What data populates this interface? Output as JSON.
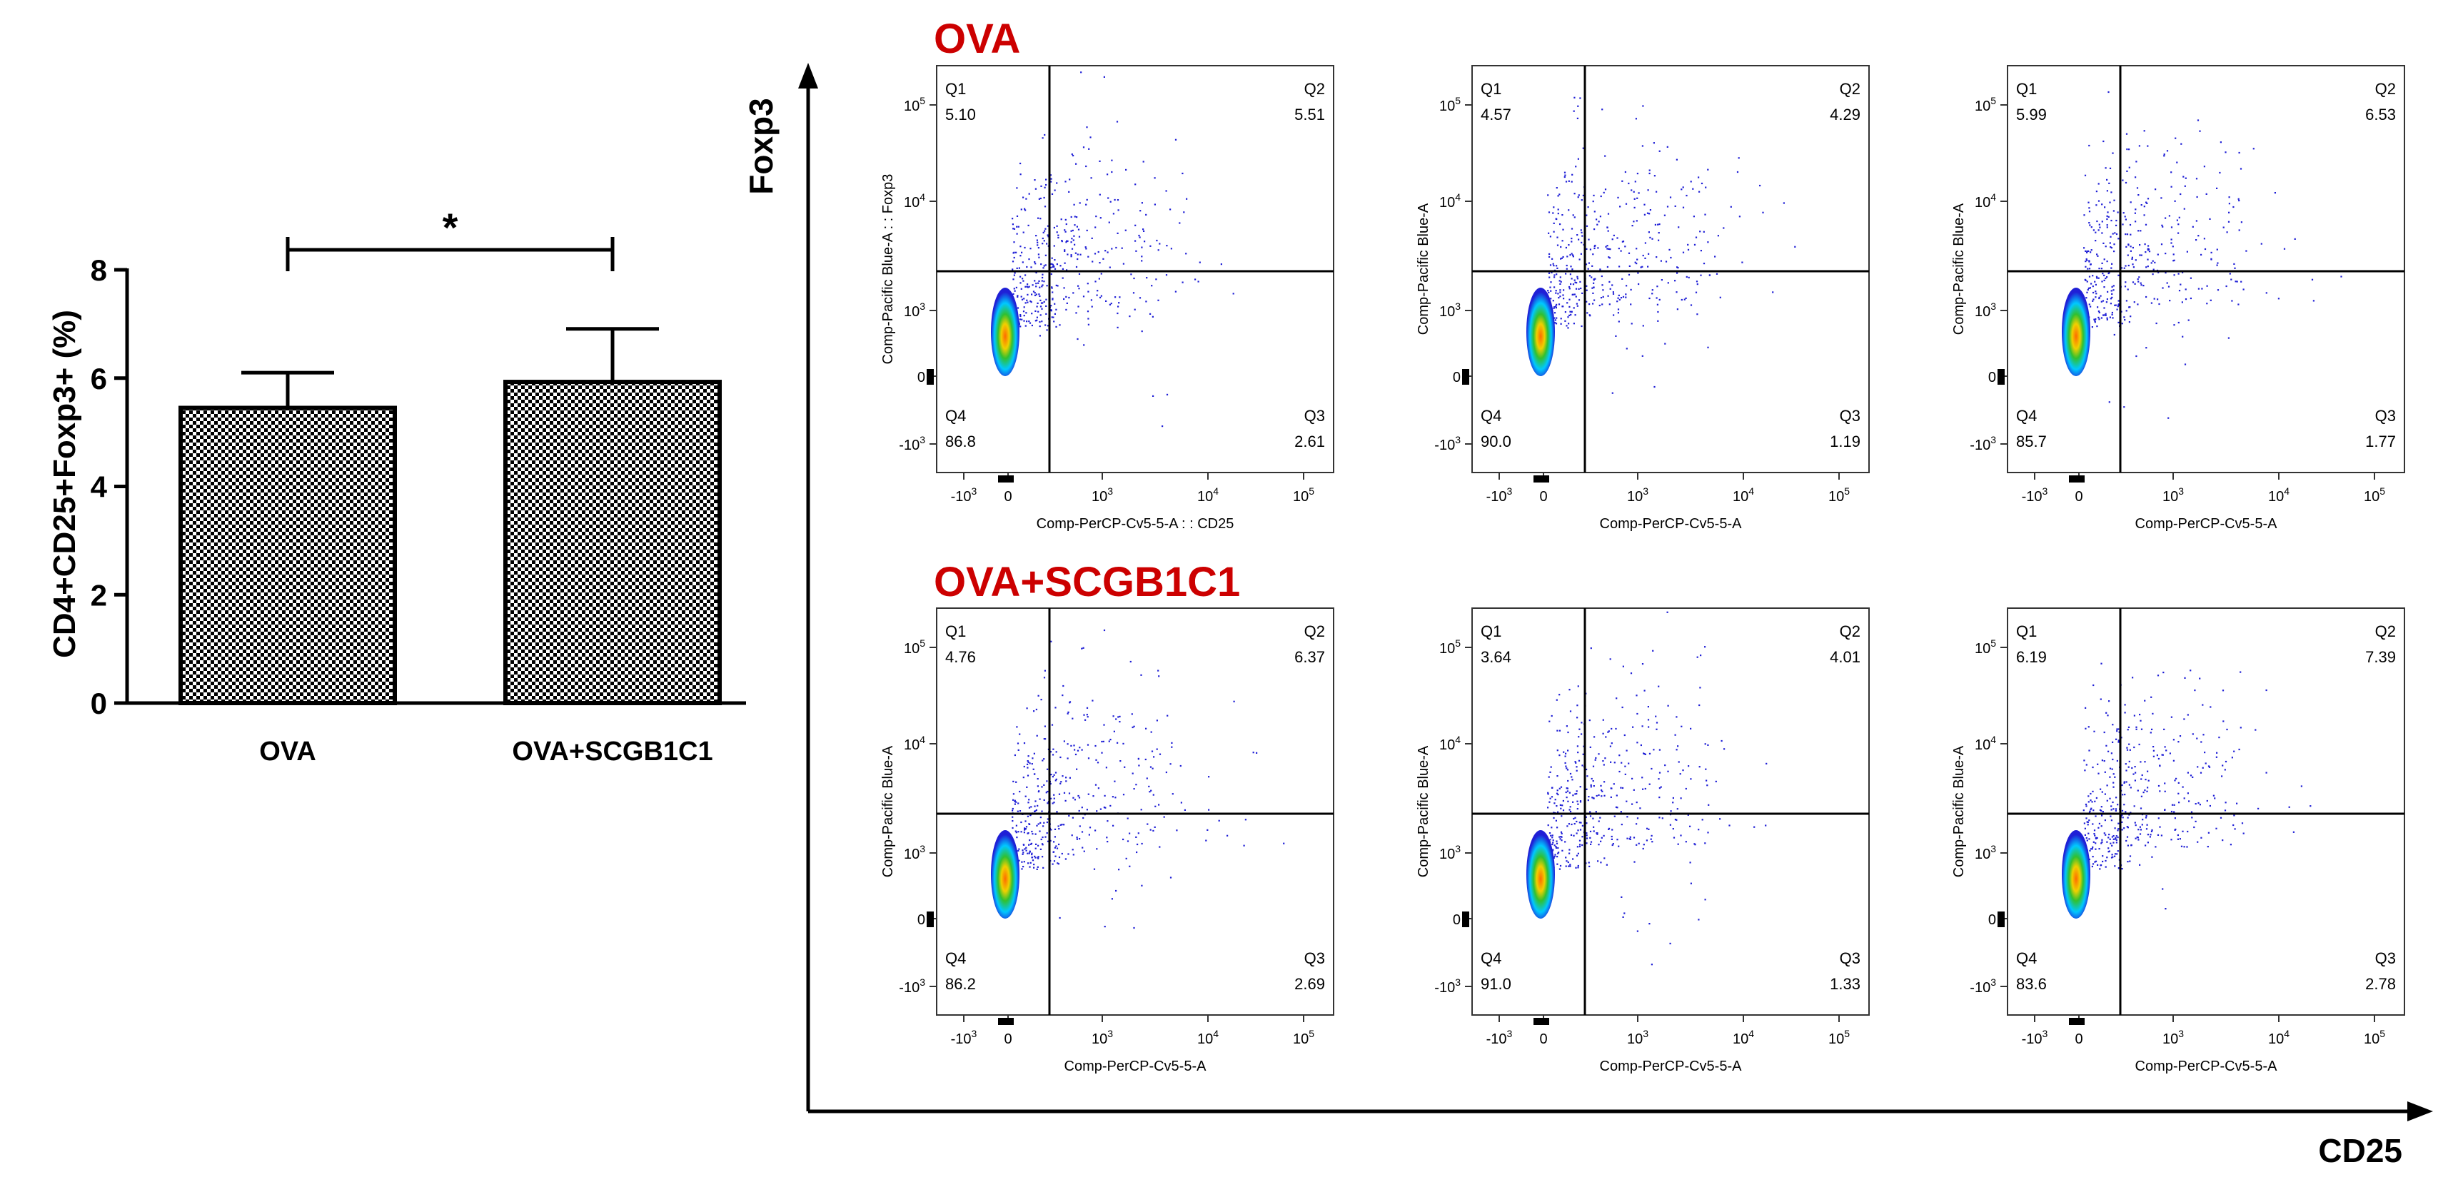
{
  "colors": {
    "axis": "#000000",
    "group_label": "#cc0000",
    "bar_fill_pattern": "checkerboard black/white",
    "density_low": "#1f1fd6",
    "density_mid": "#00c8ff",
    "density_high": "#30c030",
    "density_peak": "#ff6a00"
  },
  "chart_data": [
    {
      "type": "bar",
      "categories": [
        "OVA",
        "OVA+SCGB1C1"
      ],
      "values": [
        5.45,
        5.93
      ],
      "error_bars": [
        0.65,
        0.98
      ],
      "ylabel": "CD4+CD25+Foxp3+ (%)",
      "ylim": [
        0,
        8
      ],
      "yticks": [
        "0",
        "2",
        "4",
        "6",
        "8"
      ],
      "significance": {
        "label": "*",
        "between": [
          "OVA",
          "OVA+SCGB1C1"
        ]
      },
      "grid": false
    },
    {
      "type": "scatter",
      "description_axes": {
        "y": "Foxp3",
        "x": "CD25"
      },
      "x_tick_labels": [
        "-10^3",
        "0",
        "10^3",
        "10^4",
        "10^5"
      ],
      "y_tick_labels": [
        "10^5",
        "10^4",
        "10^3",
        "0",
        "-10^3"
      ],
      "gate_labels": [
        "Q1",
        "Q2",
        "Q3",
        "Q4"
      ],
      "groups": [
        {
          "label": "OVA",
          "panels": [
            {
              "ylabel": "Comp-Pacific Blue-A : : Foxp3",
              "xlabel": "Comp-PerCP-Cv5-5-A : : CD25",
              "Q1": "5.10",
              "Q2": "5.51",
              "Q3": "2.61",
              "Q4": "86.8"
            },
            {
              "ylabel": "Comp-Pacific Blue-A",
              "xlabel": "Comp-PerCP-Cv5-5-A",
              "Q1": "4.57",
              "Q2": "4.29",
              "Q3": "1.19",
              "Q4": "90.0"
            },
            {
              "ylabel": "Comp-Pacific Blue-A",
              "xlabel": "Comp-PerCP-Cv5-5-A",
              "Q1": "5.99",
              "Q2": "6.53",
              "Q3": "1.77",
              "Q4": "85.7"
            }
          ]
        },
        {
          "label": "OVA+SCGB1C1",
          "panels": [
            {
              "ylabel": "Comp-Pacific Blue-A",
              "xlabel": "Comp-PerCP-Cv5-5-A",
              "Q1": "4.76",
              "Q2": "6.37",
              "Q3": "2.69",
              "Q4": "86.2"
            },
            {
              "ylabel": "Comp-Pacific Blue-A",
              "xlabel": "Comp-PerCP-Cv5-5-A",
              "Q1": "3.64",
              "Q2": "4.01",
              "Q3": "1.33",
              "Q4": "91.0"
            },
            {
              "ylabel": "Comp-Pacific Blue-A",
              "xlabel": "Comp-PerCP-Cv5-5-A",
              "Q1": "6.19",
              "Q2": "7.39",
              "Q3": "2.78",
              "Q4": "83.6"
            }
          ]
        }
      ]
    }
  ]
}
